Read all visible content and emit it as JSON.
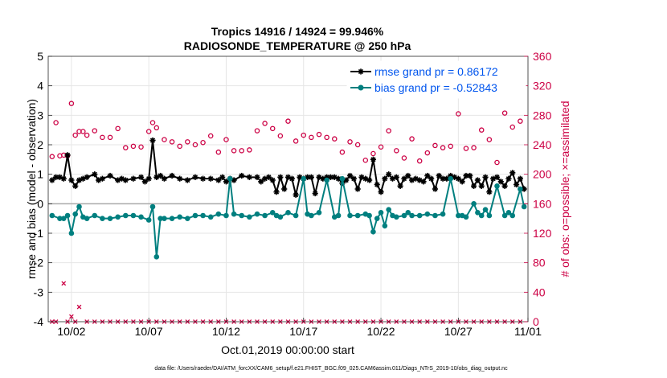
{
  "chart_data": {
    "type": "line",
    "title_line1": "Tropics 14916 / 14924 = 99.946%",
    "title_line2": "RADIOSONDE_TEMPERATURE @ 250 hPa",
    "xlabel": "Oct.01,2019 00:00:00 start",
    "ylabel_left": "rmse and bias (model - observation)",
    "ylabel_right": "# of obs: o=possible; ×=assimilated",
    "ylim_left": [
      -4,
      5
    ],
    "ylim_right": [
      0,
      360
    ],
    "xlim": [
      0.5,
      31.5
    ],
    "yticks_left": [
      -4,
      -3,
      -2,
      -1,
      0,
      1,
      2,
      3,
      4,
      5
    ],
    "yticks_right": [
      0,
      40,
      80,
      120,
      160,
      200,
      240,
      280,
      320,
      360
    ],
    "xticks": [
      {
        "x": 2,
        "label": "10/02"
      },
      {
        "x": 7,
        "label": "10/07"
      },
      {
        "x": 12,
        "label": "10/12"
      },
      {
        "x": 17,
        "label": "10/17"
      },
      {
        "x": 22,
        "label": "10/22"
      },
      {
        "x": 27,
        "label": "10/27"
      },
      {
        "x": 32,
        "label": "11/01"
      }
    ],
    "grid": true,
    "legend_position": "top-right",
    "colors": {
      "rmse": "#000000",
      "bias": "#007f7f",
      "counts": "#cc0044",
      "zero_line": "#aaaaaa",
      "legend_text": "#0055ee"
    },
    "footnote": "data file: /Users/raeder/DAI/ATM_forcXX/CAM6_setup/f.e21.FHIST_BGC.f09_025.CAM6assim.011/Diags_NTrS_2019-10/obs_diag_output.nc",
    "series": [
      {
        "name": "rmse",
        "legend": "rmse grand pr = 0.86172",
        "x": [
          0.75,
          1.0,
          1.25,
          1.5,
          1.75,
          2.0,
          2.25,
          2.5,
          2.75,
          3.0,
          3.5,
          3.75,
          4.0,
          4.5,
          5.0,
          5.25,
          5.5,
          6.0,
          6.5,
          6.75,
          7.0,
          7.25,
          7.5,
          7.75,
          8.0,
          8.5,
          9.0,
          9.5,
          10.0,
          10.5,
          11.0,
          11.5,
          11.75,
          12.0,
          12.25,
          12.5,
          13.0,
          13.5,
          14.0,
          14.25,
          14.5,
          14.75,
          15.0,
          15.25,
          15.5,
          15.75,
          16.0,
          16.25,
          16.5,
          16.75,
          17.0,
          17.25,
          17.5,
          17.75,
          18.0,
          18.25,
          18.5,
          18.75,
          19.0,
          19.25,
          19.5,
          19.75,
          20.0,
          20.25,
          20.5,
          20.75,
          21.0,
          21.25,
          21.5,
          21.75,
          22.0,
          22.25,
          22.5,
          22.75,
          23.0,
          23.25,
          23.5,
          23.75,
          24.0,
          24.25,
          24.5,
          24.75,
          25.0,
          25.25,
          25.5,
          25.75,
          26.0,
          26.25,
          26.5,
          26.75,
          27.0,
          27.25,
          27.5,
          27.75,
          28.0,
          28.25,
          28.5,
          28.75,
          29.0,
          29.25,
          29.5,
          29.75,
          30.0,
          30.25,
          30.5,
          30.75,
          31.0,
          31.25
        ],
        "values": [
          0.8,
          0.9,
          0.9,
          0.85,
          1.65,
          0.8,
          0.6,
          0.8,
          0.85,
          0.9,
          1.0,
          0.8,
          0.85,
          0.95,
          0.8,
          0.85,
          0.8,
          0.85,
          0.9,
          0.75,
          0.85,
          2.15,
          0.9,
          0.95,
          0.85,
          0.95,
          0.85,
          0.8,
          0.9,
          0.85,
          0.85,
          0.8,
          0.9,
          0.75,
          0.85,
          0.8,
          0.95,
          0.9,
          0.9,
          0.75,
          0.85,
          0.9,
          0.8,
          0.4,
          0.9,
          0.5,
          0.9,
          0.85,
          0.3,
          0.9,
          0.85,
          0.9,
          0.9,
          0.35,
          0.9,
          0.85,
          0.9,
          0.9,
          0.9,
          0.85,
          0.7,
          0.8,
          0.95,
          0.85,
          0.5,
          0.9,
          0.85,
          0.8,
          1.5,
          0.65,
          0.4,
          0.85,
          1.0,
          0.85,
          0.9,
          0.6,
          0.85,
          0.95,
          0.8,
          0.85,
          0.8,
          0.75,
          0.95,
          0.85,
          0.5,
          0.95,
          0.85,
          0.85,
          0.95,
          0.9,
          0.85,
          0.75,
          0.95,
          0.95,
          0.6,
          0.8,
          0.6,
          0.9,
          0.4,
          0.85,
          0.9,
          0.75,
          0.6,
          0.85,
          1.05,
          0.65,
          0.85,
          0.5
        ]
      },
      {
        "name": "bias",
        "legend": "bias grand pr = -0.52843",
        "x": [
          0.75,
          1.25,
          1.5,
          1.75,
          2.0,
          2.25,
          2.5,
          2.75,
          3.0,
          3.5,
          4.0,
          4.5,
          5.0,
          5.5,
          6.0,
          6.5,
          7.0,
          7.25,
          7.5,
          7.75,
          8.0,
          8.5,
          9.0,
          9.5,
          10.0,
          10.5,
          11.0,
          11.5,
          12.0,
          12.25,
          12.5,
          13.0,
          13.5,
          14.0,
          14.5,
          15.0,
          15.25,
          15.5,
          16.0,
          16.5,
          17.0,
          17.25,
          17.5,
          18.0,
          18.5,
          19.0,
          19.25,
          19.5,
          20.0,
          20.5,
          21.0,
          21.25,
          21.5,
          21.75,
          22.0,
          22.25,
          22.5,
          22.75,
          23.0,
          23.5,
          23.75,
          24.0,
          24.5,
          25.0,
          25.5,
          26.0,
          26.5,
          27.0,
          27.25,
          27.5,
          28.0,
          28.25,
          28.5,
          28.75,
          29.0,
          29.5,
          30.0,
          30.25,
          30.5,
          31.0,
          31.25
        ],
        "values": [
          -0.4,
          -0.5,
          -0.5,
          -0.4,
          -1.0,
          -0.35,
          -0.1,
          -0.45,
          -0.5,
          -0.4,
          -0.5,
          -0.5,
          -0.45,
          -0.4,
          -0.4,
          -0.45,
          -0.55,
          -0.1,
          -1.8,
          -0.5,
          -0.5,
          -0.5,
          -0.45,
          -0.5,
          -0.4,
          -0.4,
          -0.45,
          -0.35,
          -0.4,
          0.85,
          -0.35,
          -0.4,
          -0.45,
          -0.35,
          -0.4,
          -0.3,
          -0.4,
          -0.45,
          -0.3,
          -0.4,
          0.85,
          -0.35,
          -0.4,
          -0.3,
          0.8,
          -0.45,
          -0.4,
          0.85,
          -0.4,
          -0.4,
          -0.35,
          -0.4,
          -0.95,
          -0.5,
          -0.3,
          -0.75,
          -0.2,
          -0.4,
          -0.45,
          -0.4,
          -0.3,
          -0.4,
          -0.4,
          -0.35,
          -0.4,
          -0.35,
          0.85,
          -0.4,
          -0.4,
          -0.45,
          0.0,
          -0.3,
          -0.4,
          -0.2,
          -0.4,
          0.6,
          -0.4,
          -0.3,
          -0.4,
          0.5,
          -0.1
        ]
      },
      {
        "name": "possible",
        "marker": "o",
        "axis": "right",
        "x": [
          0.75,
          1.0,
          1.25,
          1.5,
          1.75,
          2.0,
          2.25,
          2.5,
          2.75,
          3.0,
          3.5,
          4.0,
          4.5,
          5.0,
          5.5,
          6.0,
          6.5,
          7.0,
          7.25,
          7.5,
          8.0,
          8.5,
          9.0,
          9.5,
          10.0,
          10.5,
          11.0,
          11.5,
          12.0,
          12.5,
          13.0,
          13.5,
          14.0,
          14.5,
          15.0,
          15.5,
          16.0,
          16.5,
          17.0,
          17.5,
          18.0,
          18.5,
          19.0,
          19.5,
          20.0,
          20.5,
          21.0,
          21.5,
          22.0,
          22.5,
          23.0,
          23.5,
          24.0,
          24.5,
          25.0,
          25.5,
          26.0,
          26.5,
          27.0,
          27.5,
          28.0,
          28.5,
          29.0,
          29.5,
          30.0,
          30.5,
          31.0
        ],
        "values": [
          224,
          270,
          225,
          226,
          225,
          296,
          253,
          258,
          258,
          253,
          259,
          250,
          250,
          262,
          236,
          238,
          237,
          258,
          270,
          263,
          247,
          244,
          238,
          244,
          240,
          243,
          252,
          230,
          247,
          232,
          232,
          233,
          259,
          269,
          262,
          252,
          272,
          245,
          253,
          250,
          254,
          250,
          248,
          230,
          244,
          240,
          219,
          228,
          237,
          259,
          232,
          222,
          248,
          218,
          229,
          239,
          236,
          238,
          282,
          235,
          236,
          260,
          247,
          216,
          283,
          264,
          272
        ]
      },
      {
        "name": "assimilated",
        "marker": "x",
        "axis": "right",
        "x": [
          0.75,
          1.0,
          1.5,
          1.75,
          2.0,
          2.25,
          2.5,
          3.0,
          3.5,
          4.0,
          4.5,
          5.0,
          5.5,
          6.0,
          6.5,
          7.0,
          7.5,
          8.0,
          8.5,
          9.0,
          9.5,
          10.0,
          10.5,
          11.0,
          11.5,
          12.0,
          12.5,
          13.0,
          13.5,
          14.0,
          14.5,
          15.0,
          15.5,
          16.0,
          16.5,
          17.0,
          17.5,
          18.0,
          18.5,
          19.0,
          19.5,
          20.0,
          20.5,
          21.0,
          21.5,
          22.0,
          22.5,
          23.0,
          23.5,
          24.0,
          24.5,
          25.0,
          25.5,
          26.0,
          26.5,
          27.0,
          27.5,
          28.0,
          28.5,
          29.0,
          29.5,
          30.0,
          30.5,
          31.0
        ],
        "values": [
          0,
          0,
          52,
          0,
          7,
          0,
          20,
          0,
          0,
          0,
          0,
          0,
          0,
          0,
          0,
          0,
          0,
          0,
          0,
          0,
          0,
          0,
          0,
          0,
          0,
          0,
          0,
          0,
          0,
          0,
          0,
          0,
          0,
          0,
          0,
          0,
          0,
          0,
          0,
          0,
          0,
          0,
          0,
          0,
          0,
          0,
          0,
          0,
          0,
          0,
          0,
          0,
          0,
          0,
          0,
          0,
          0,
          0,
          0,
          0,
          0,
          0,
          0,
          0
        ]
      }
    ]
  }
}
